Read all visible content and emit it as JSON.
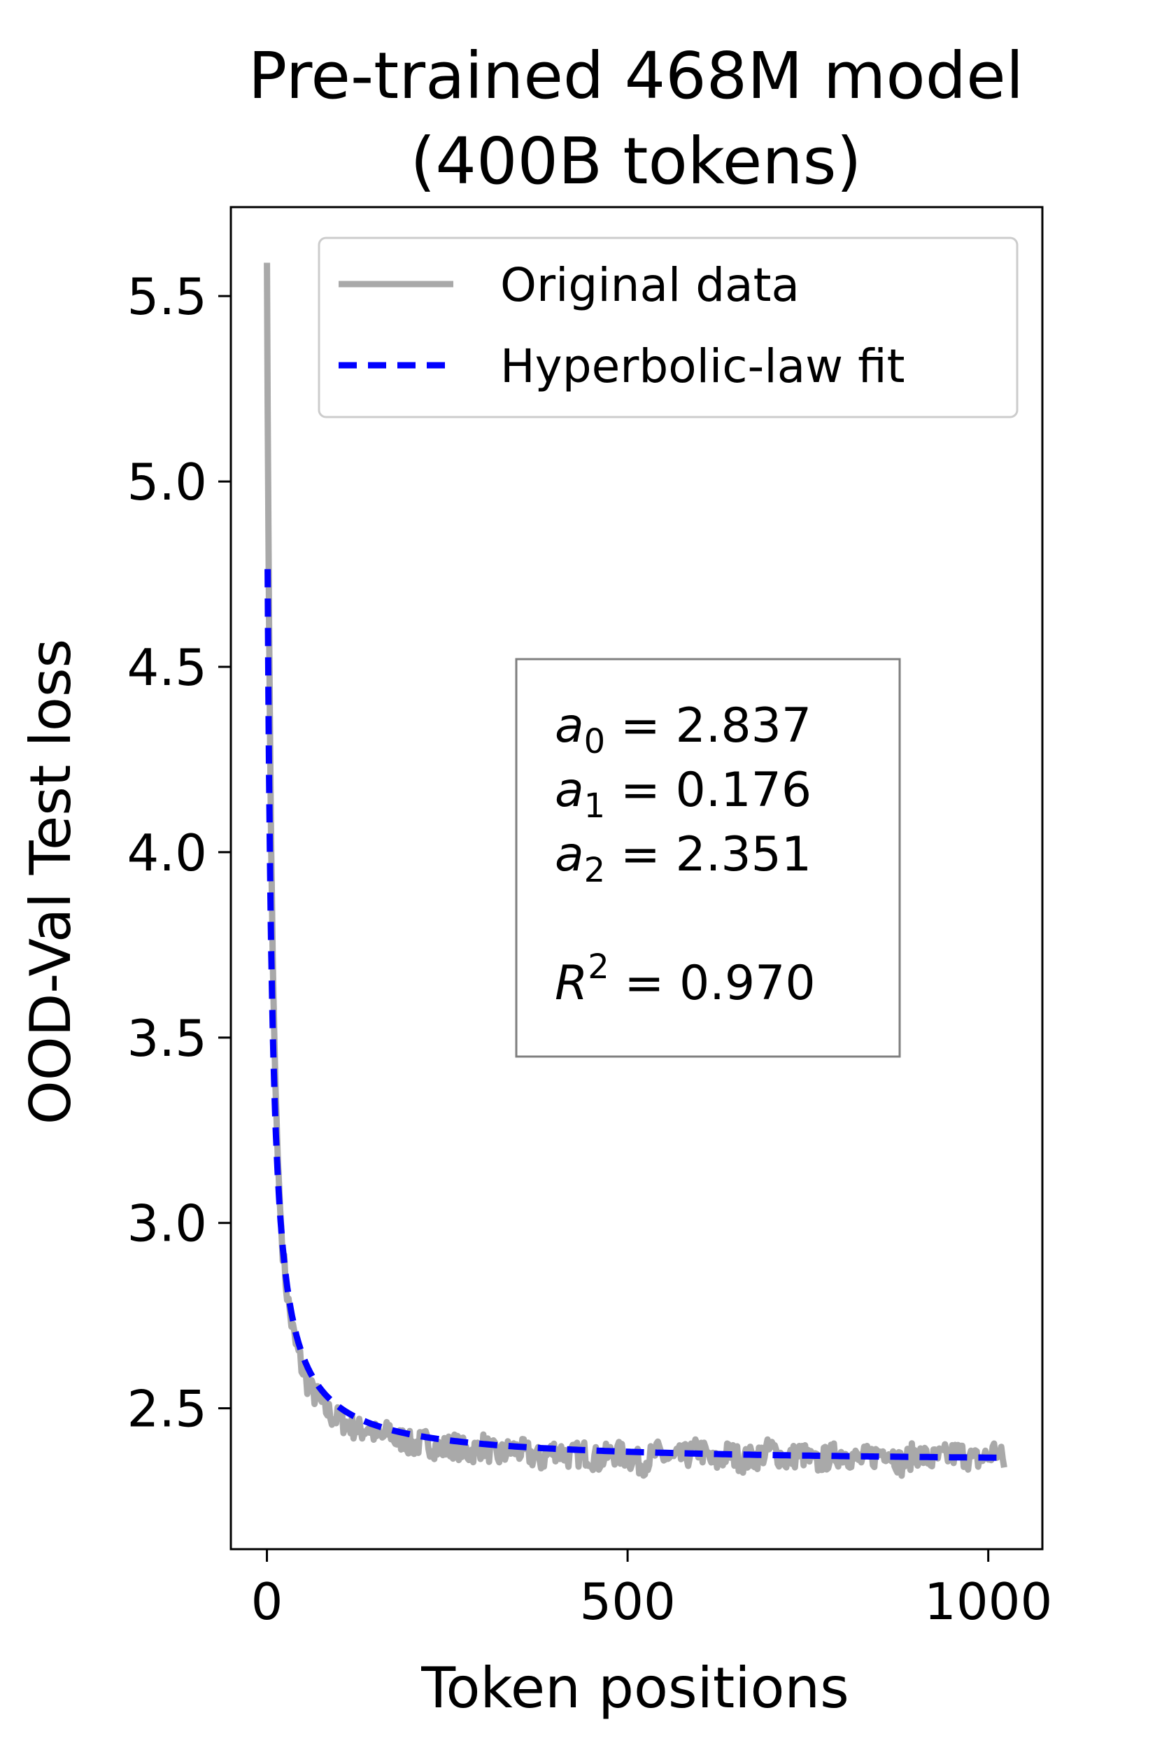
{
  "chart_data": {
    "type": "line",
    "title": [
      "Pre-trained 468M model",
      "(400B tokens)"
    ],
    "xlabel": "Token positions",
    "ylabel": "OOD-Val Test loss",
    "xlim": [
      -50,
      1075
    ],
    "ylim": [
      2.12,
      5.74
    ],
    "xticks": [
      0,
      500,
      1000
    ],
    "xtick_labels": [
      "0",
      "500",
      "1000"
    ],
    "yticks": [
      2.5,
      3.0,
      3.5,
      4.0,
      4.5,
      5.0,
      5.5
    ],
    "ytick_labels": [
      "2.5",
      "3.0",
      "3.5",
      "4.0",
      "4.5",
      "5.0",
      "5.5"
    ],
    "grid": false,
    "legend_position": "top-right",
    "series": [
      {
        "name": "Original data",
        "color": "#a9a9a9",
        "style": "solid",
        "x": [
          0,
          1,
          2,
          3,
          4,
          5,
          6,
          7,
          8,
          10,
          12,
          15,
          18,
          20,
          25,
          30,
          35,
          40,
          45,
          50,
          60,
          70,
          80,
          90,
          100,
          110,
          120,
          130,
          140,
          150,
          160,
          170,
          180,
          190,
          200,
          220,
          240,
          260,
          280,
          300,
          320,
          340,
          360,
          380,
          400,
          420,
          440,
          460,
          480,
          500,
          520,
          540,
          560,
          580,
          600,
          620,
          640,
          660,
          680,
          700,
          720,
          740,
          760,
          780,
          800,
          820,
          840,
          860,
          880,
          900,
          920,
          940,
          960,
          980,
          1000,
          1010,
          1023
        ],
        "y": [
          5.59,
          5.2,
          4.9,
          4.62,
          4.38,
          4.18,
          4.0,
          3.86,
          3.72,
          3.52,
          3.36,
          3.18,
          3.05,
          2.98,
          2.86,
          2.78,
          2.72,
          2.67,
          2.64,
          2.6,
          2.55,
          2.53,
          2.5,
          2.48,
          2.47,
          2.46,
          2.45,
          2.44,
          2.45,
          2.43,
          2.42,
          2.44,
          2.41,
          2.42,
          2.4,
          2.41,
          2.39,
          2.4,
          2.38,
          2.4,
          2.37,
          2.39,
          2.38,
          2.36,
          2.39,
          2.37,
          2.38,
          2.36,
          2.38,
          2.37,
          2.35,
          2.38,
          2.36,
          2.37,
          2.39,
          2.35,
          2.38,
          2.36,
          2.37,
          2.39,
          2.36,
          2.38,
          2.35,
          2.37,
          2.38,
          2.36,
          2.37,
          2.39,
          2.35,
          2.38,
          2.36,
          2.37,
          2.38,
          2.36,
          2.37,
          2.39,
          2.35
        ]
      },
      {
        "name": "Hyperbolic-law fit",
        "color": "#0000ff",
        "style": "dashed",
        "model": "hyperbolic",
        "x_range": [
          1,
          1023
        ],
        "params": {
          "a0": 2.837,
          "a1": 0.176,
          "a2": 2.351
        }
      }
    ],
    "annotations": [
      {
        "var": "a",
        "sub": "0",
        "value": "2.837"
      },
      {
        "var": "a",
        "sub": "1",
        "value": "0.176"
      },
      {
        "var": "a",
        "sub": "2",
        "value": "2.351"
      },
      {
        "var": "R",
        "sup": "2",
        "value": "0.970"
      }
    ]
  }
}
